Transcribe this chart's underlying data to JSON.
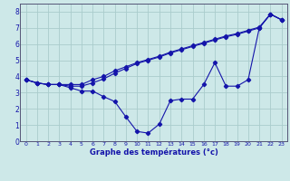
{
  "xlabel": "Graphe des températures (°c)",
  "bg_color": "#cde8e8",
  "line_color": "#1414aa",
  "grid_color": "#aacccc",
  "spine_color": "#555577",
  "xlim": [
    -0.5,
    23.5
  ],
  "ylim": [
    0,
    8.5
  ],
  "xticks": [
    0,
    1,
    2,
    3,
    4,
    5,
    6,
    7,
    8,
    9,
    10,
    11,
    12,
    13,
    14,
    15,
    16,
    17,
    18,
    19,
    20,
    21,
    22,
    23
  ],
  "yticks": [
    0,
    1,
    2,
    3,
    4,
    5,
    6,
    7,
    8
  ],
  "s1_x": [
    0,
    1,
    2,
    3,
    4,
    5,
    6,
    7,
    8,
    9,
    10,
    11,
    12,
    13,
    14,
    15,
    16,
    17,
    18,
    19,
    20,
    21,
    22,
    23
  ],
  "s1_y": [
    3.8,
    3.6,
    3.5,
    3.5,
    3.3,
    3.1,
    3.1,
    2.75,
    2.45,
    1.5,
    0.6,
    0.5,
    1.05,
    2.5,
    2.6,
    2.6,
    3.5,
    4.85,
    3.4,
    3.4,
    3.8,
    7.0,
    7.85,
    7.5
  ],
  "s2_x": [
    0,
    1,
    2,
    3,
    4,
    5,
    6,
    7,
    8,
    9,
    10,
    11,
    12,
    13,
    14,
    15,
    16,
    17,
    18,
    19,
    20,
    21,
    22,
    23
  ],
  "s2_y": [
    3.8,
    3.6,
    3.5,
    3.5,
    3.5,
    3.5,
    3.8,
    4.0,
    4.35,
    4.6,
    4.85,
    5.05,
    5.25,
    5.5,
    5.7,
    5.9,
    6.1,
    6.3,
    6.5,
    6.65,
    6.85,
    7.05,
    7.85,
    7.5
  ],
  "s3_x": [
    0,
    1,
    2,
    3,
    4,
    5,
    6,
    7,
    8,
    9,
    10,
    11,
    12,
    13,
    14,
    15,
    16,
    17,
    18,
    19,
    20,
    21,
    22,
    23
  ],
  "s3_y": [
    3.8,
    3.6,
    3.5,
    3.5,
    3.4,
    3.4,
    3.6,
    3.85,
    4.2,
    4.5,
    4.8,
    5.0,
    5.2,
    5.45,
    5.65,
    5.85,
    6.05,
    6.25,
    6.45,
    6.6,
    6.8,
    7.0,
    7.85,
    7.5
  ]
}
